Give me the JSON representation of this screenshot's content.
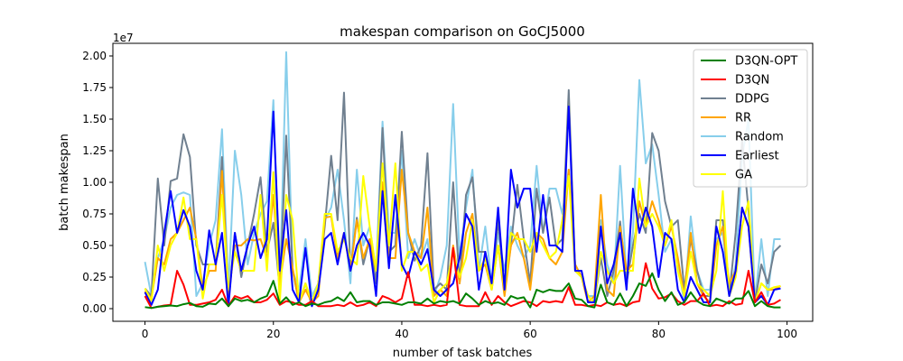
{
  "chart_data": {
    "type": "line",
    "title": "makespan comparison on GoCJ5000",
    "xlabel": "number of task batches",
    "ylabel": "batch makespan",
    "y_offset_label": "1e7",
    "xlim": [
      -5,
      104
    ],
    "ylim": [
      -1000000.0,
      21000000.0
    ],
    "xticks": [
      0,
      20,
      40,
      60,
      80,
      100
    ],
    "yticks": [
      0,
      2500000,
      5000000,
      7500000,
      10000000,
      12500000,
      15000000,
      17500000,
      20000000
    ],
    "ytick_labels": [
      "0.00",
      "0.25",
      "0.50",
      "0.75",
      "1.00",
      "1.25",
      "1.50",
      "1.75",
      "2.00"
    ],
    "grid": false,
    "legend_position": "top-right",
    "series_order": [
      "D3QN-OPT",
      "D3QN",
      "DDPG",
      "RR",
      "Random",
      "Earliest",
      "GA"
    ],
    "draw_order": [
      "Random",
      "DDPG",
      "RR",
      "GA",
      "Earliest",
      "D3QN",
      "D3QN-OPT"
    ],
    "series": [
      {
        "name": "D3QN-OPT",
        "color": "#008000",
        "values": [
          0.12,
          0.05,
          0.15,
          0.2,
          0.25,
          0.2,
          0.35,
          0.45,
          0.2,
          0.15,
          0.4,
          0.35,
          0.8,
          0.2,
          0.8,
          0.6,
          0.7,
          0.5,
          0.8,
          1.0,
          2.2,
          0.4,
          0.9,
          0.3,
          0.5,
          0.2,
          0.4,
          0.3,
          0.5,
          0.6,
          0.9,
          0.6,
          1.3,
          0.5,
          0.6,
          0.6,
          0.3,
          0.5,
          0.5,
          0.4,
          0.3,
          0.5,
          0.5,
          0.4,
          0.8,
          0.4,
          0.6,
          0.5,
          0.6,
          0.4,
          1.2,
          0.8,
          0.3,
          0.6,
          0.4,
          0.5,
          0.3,
          1.0,
          0.8,
          0.9,
          0.1,
          1.5,
          1.3,
          1.5,
          1.4,
          1.4,
          2.0,
          0.8,
          0.7,
          0.2,
          0.1,
          1.9,
          0.5,
          0.3,
          1.2,
          0.2,
          1.0,
          2.0,
          1.8,
          2.8,
          1.5,
          0.6,
          1.3,
          0.3,
          0.5,
          1.3,
          0.6,
          0.3,
          0.2,
          0.8,
          0.6,
          0.4,
          0.8,
          0.8,
          1.4,
          0.2,
          0.6,
          0.2,
          0.1,
          0.1
        ]
      },
      {
        "name": "D3QN",
        "color": "#ff0000",
        "values": [
          1.0,
          0.05,
          0.15,
          0.25,
          0.3,
          3.0,
          1.9,
          0.3,
          0.3,
          0.4,
          0.5,
          0.7,
          1.5,
          0.2,
          1.0,
          0.8,
          1.0,
          0.5,
          0.5,
          0.7,
          1.2,
          0.3,
          0.6,
          0.5,
          0.3,
          0.3,
          0.6,
          0.2,
          0.2,
          0.2,
          0.3,
          0.2,
          0.5,
          0.2,
          0.3,
          0.5,
          0.2,
          1.0,
          0.8,
          0.5,
          0.8,
          2.9,
          0.3,
          0.3,
          0.2,
          0.3,
          0.2,
          0.3,
          4.8,
          0.3,
          0.2,
          0.2,
          0.2,
          1.3,
          0.3,
          1.0,
          0.5,
          0.2,
          0.4,
          0.6,
          0.5,
          0.2,
          0.6,
          0.5,
          0.6,
          0.5,
          1.7,
          0.3,
          0.3,
          0.2,
          0.3,
          0.2,
          0.5,
          0.3,
          0.4,
          0.2,
          0.5,
          0.6,
          3.6,
          1.6,
          0.8,
          0.9,
          1.2,
          0.6,
          0.3,
          0.6,
          0.6,
          1.2,
          0.2,
          0.3,
          0.2,
          0.6,
          0.3,
          0.4,
          3.0,
          0.5,
          1.3,
          0.3,
          0.4,
          0.7
        ]
      },
      {
        "name": "DDPG",
        "color": "#708090",
        "values": [
          1.6,
          1.0,
          10.3,
          5.0,
          10.1,
          10.3,
          13.8,
          12.0,
          5.0,
          3.5,
          3.5,
          3.5,
          12.0,
          0.5,
          6.0,
          2.5,
          5.0,
          7.5,
          10.4,
          4.5,
          6.8,
          1.5,
          13.7,
          3.0,
          0.5,
          2.0,
          0.2,
          2.0,
          6.5,
          12.1,
          7.0,
          17.1,
          3.0,
          7.2,
          3.5,
          5.5,
          2.0,
          14.3,
          4.5,
          5.0,
          14.0,
          6.0,
          3.8,
          5.0,
          12.3,
          1.5,
          2.0,
          1.5,
          10.0,
          2.0,
          9.0,
          10.4,
          4.5,
          4.5,
          1.5,
          7.0,
          1.5,
          5.0,
          9.8,
          5.5,
          2.0,
          9.5,
          6.0,
          8.8,
          5.0,
          5.5,
          17.3,
          3.0,
          2.5,
          1.0,
          0.5,
          4.0,
          1.0,
          3.0,
          6.9,
          2.0,
          5.0,
          7.5,
          6.0,
          13.9,
          12.5,
          8.5,
          6.5,
          7.0,
          1.5,
          5.5,
          3.0,
          1.0,
          1.0,
          7.0,
          7.0,
          1.0,
          6.0,
          13.3,
          7.8,
          0.5,
          3.5,
          2.0,
          4.5,
          5.0
        ]
      },
      {
        "name": "RR",
        "color": "#ffa500",
        "values": [
          1.4,
          0.8,
          4.0,
          3.5,
          5.5,
          6.0,
          7.0,
          8.0,
          5.5,
          1.5,
          3.0,
          3.0,
          10.9,
          1.0,
          5.0,
          5.0,
          5.5,
          5.4,
          5.5,
          4.0,
          9.0,
          2.0,
          5.5,
          3.2,
          0.5,
          1.5,
          0.5,
          1.0,
          7.2,
          7.3,
          4.0,
          6.0,
          3.0,
          7.0,
          4.0,
          5.5,
          3.0,
          10.0,
          4.0,
          4.0,
          11.0,
          6.0,
          4.5,
          4.0,
          8.0,
          1.0,
          1.5,
          1.0,
          5.0,
          2.0,
          6.0,
          7.5,
          3.0,
          3.5,
          1.5,
          5.0,
          1.0,
          5.0,
          6.0,
          4.0,
          1.5,
          6.0,
          5.5,
          4.0,
          3.5,
          4.5,
          11.0,
          3.5,
          2.5,
          0.5,
          1.0,
          9.0,
          1.5,
          1.0,
          6.5,
          3.0,
          3.5,
          8.5,
          6.5,
          8.5,
          7.0,
          5.0,
          6.5,
          4.0,
          1.0,
          6.0,
          2.0,
          1.0,
          0.5,
          5.0,
          6.5,
          2.0,
          3.0,
          8.0,
          6.5,
          0.5,
          2.0,
          1.5,
          1.5,
          1.8
        ]
      },
      {
        "name": "Random",
        "color": "#87ceeb",
        "values": [
          3.7,
          1.0,
          4.0,
          5.5,
          8.0,
          9.0,
          9.2,
          9.0,
          1.0,
          2.0,
          5.0,
          7.0,
          14.2,
          1.5,
          12.5,
          9.0,
          3.5,
          6.0,
          7.5,
          8.5,
          16.5,
          1.5,
          20.3,
          3.0,
          1.5,
          5.5,
          1.0,
          2.0,
          7.0,
          8.0,
          11.0,
          7.0,
          2.0,
          11.0,
          5.0,
          6.5,
          3.0,
          14.8,
          6.0,
          6.0,
          12.5,
          4.0,
          5.5,
          4.0,
          5.5,
          1.0,
          2.5,
          5.0,
          16.2,
          4.0,
          8.0,
          11.0,
          3.0,
          6.5,
          2.0,
          6.0,
          3.0,
          6.5,
          5.0,
          4.0,
          5.0,
          11.3,
          6.0,
          9.5,
          9.5,
          7.5,
          11.0,
          3.5,
          2.5,
          1.0,
          1.0,
          7.0,
          3.5,
          2.0,
          11.3,
          2.5,
          6.0,
          18.1,
          11.5,
          13.0,
          9.0,
          4.5,
          5.5,
          3.5,
          0.5,
          7.3,
          3.0,
          1.5,
          1.5,
          5.5,
          6.0,
          1.0,
          3.5,
          12.0,
          15.0,
          0.5,
          5.5,
          1.0,
          5.5,
          5.5
        ]
      },
      {
        "name": "Earliest",
        "color": "#0000ff",
        "values": [
          1.3,
          0.3,
          1.5,
          6.0,
          9.3,
          6.0,
          7.8,
          6.5,
          3.0,
          1.5,
          6.2,
          3.5,
          6.0,
          0.2,
          6.0,
          3.0,
          5.0,
          6.5,
          4.0,
          5.5,
          15.6,
          3.0,
          7.8,
          1.5,
          0.5,
          4.8,
          0.2,
          1.5,
          5.5,
          6.0,
          3.5,
          6.0,
          3.0,
          5.0,
          6.0,
          5.0,
          1.0,
          9.3,
          3.2,
          9.0,
          3.5,
          2.5,
          4.5,
          3.5,
          4.7,
          1.5,
          1.0,
          1.5,
          2.0,
          4.0,
          7.5,
          6.5,
          1.5,
          4.5,
          2.0,
          8.0,
          1.5,
          11.0,
          8.0,
          9.5,
          9.5,
          4.5,
          9.0,
          5.0,
          5.0,
          4.5,
          16.0,
          3.0,
          3.0,
          0.5,
          0.5,
          6.5,
          2.0,
          3.5,
          6.0,
          1.5,
          9.5,
          6.0,
          8.0,
          6.5,
          2.5,
          6.0,
          5.5,
          1.5,
          0.5,
          2.5,
          1.5,
          0.5,
          0.5,
          6.5,
          4.5,
          1.0,
          3.0,
          8.0,
          6.5,
          0.5,
          1.0,
          0.3,
          1.5,
          1.6
        ]
      },
      {
        "name": "GA",
        "color": "#ffff00",
        "values": [
          1.6,
          0.6,
          5.0,
          3.0,
          5.0,
          6.0,
          8.8,
          5.5,
          5.5,
          0.8,
          3.5,
          3.5,
          9.0,
          1.5,
          4.5,
          3.0,
          3.0,
          3.0,
          9.0,
          3.0,
          10.8,
          0.5,
          9.0,
          7.0,
          0.5,
          2.0,
          0.5,
          2.0,
          7.5,
          7.5,
          4.5,
          5.5,
          4.0,
          3.5,
          10.5,
          6.5,
          3.0,
          11.5,
          5.0,
          11.5,
          3.0,
          4.5,
          4.5,
          3.0,
          3.5,
          0.5,
          1.5,
          2.0,
          4.5,
          2.5,
          4.0,
          7.0,
          3.0,
          4.0,
          1.5,
          5.0,
          1.5,
          6.0,
          5.5,
          5.5,
          4.5,
          6.0,
          5.0,
          4.0,
          4.5,
          7.0,
          10.5,
          3.0,
          2.5,
          1.0,
          0.5,
          4.5,
          3.0,
          2.0,
          3.0,
          3.0,
          3.0,
          10.3,
          6.5,
          7.5,
          6.5,
          5.0,
          7.0,
          3.0,
          1.0,
          4.5,
          2.0,
          1.5,
          1.0,
          3.0,
          9.3,
          1.0,
          2.5,
          6.5,
          8.5,
          0.5,
          2.0,
          1.5,
          1.7,
          1.8
        ]
      }
    ]
  }
}
